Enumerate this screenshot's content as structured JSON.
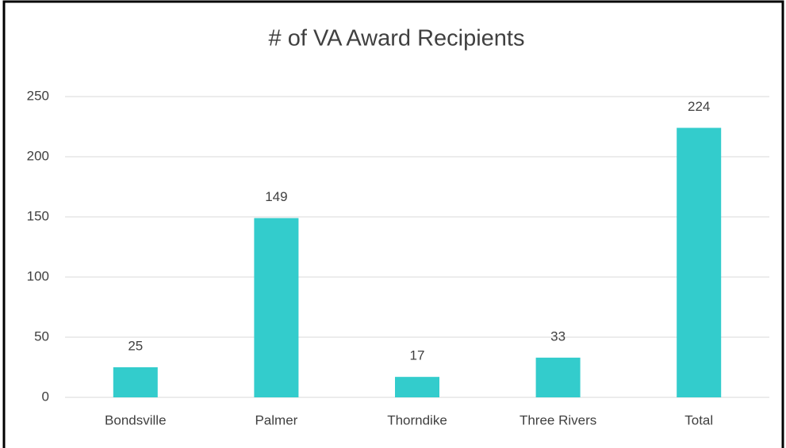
{
  "chart_data": {
    "type": "bar",
    "title": "# of VA Award Recipients",
    "categories": [
      "Bondsville",
      "Palmer",
      "Thorndike",
      "Three Rivers",
      "Total"
    ],
    "values": [
      25,
      149,
      17,
      33,
      224
    ],
    "color": "#33cccc",
    "ylim": [
      0,
      250
    ],
    "yticks": [
      0,
      50,
      100,
      150,
      200,
      250
    ],
    "grid": true
  }
}
